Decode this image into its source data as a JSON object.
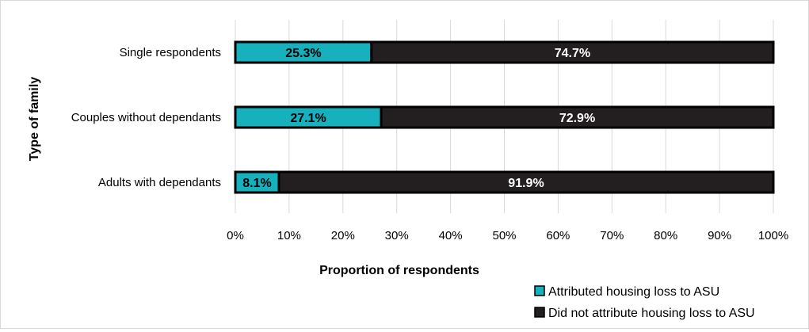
{
  "chart_data": {
    "type": "bar",
    "orientation": "horizontal",
    "stacked": true,
    "categories": [
      "Single respondents",
      "Couples without dependants",
      "Adults with dependants"
    ],
    "series": [
      {
        "name": "Attributed housing loss to ASU",
        "values": [
          25.3,
          27.1,
          8.1
        ],
        "labels": [
          "25.3%",
          "27.1%",
          "8.1%"
        ],
        "color": "#17b0bd"
      },
      {
        "name": "Did not attribute housing loss to ASU",
        "values": [
          74.7,
          72.9,
          91.9
        ],
        "labels": [
          "74.7%",
          "72.9%",
          "91.9%"
        ],
        "color": "#231f20"
      }
    ],
    "xlabel": "Proportion of respondents",
    "ylabel": "Type of family",
    "xlim": [
      0,
      100
    ],
    "xticks": [
      "0%",
      "10%",
      "20%",
      "30%",
      "40%",
      "50%",
      "60%",
      "70%",
      "80%",
      "90%",
      "100%"
    ],
    "grid": true,
    "legend": "bottom-right"
  }
}
